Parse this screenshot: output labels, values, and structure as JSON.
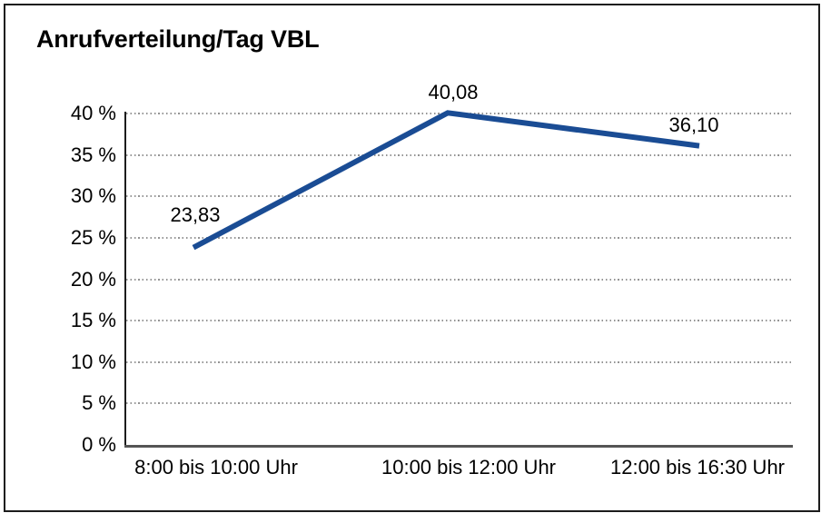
{
  "header": {
    "title": "Anrufverteilung/Tag VBL"
  },
  "chart_data": {
    "type": "line",
    "title": "Anrufverteilung/Tag VBL",
    "categories": [
      "8:00 bis 10:00 Uhr",
      "10:00 bis 12:00 Uhr",
      "12:00 bis 16:30 Uhr"
    ],
    "values": [
      23.83,
      40.08,
      36.1
    ],
    "point_labels": [
      "23,83",
      "40,08",
      "36,10"
    ],
    "xlabel": "",
    "ylabel": "",
    "ylim": [
      0,
      40
    ],
    "ytick_step": 5,
    "y_tick_values": [
      40,
      35,
      30,
      25,
      20,
      15,
      10,
      5,
      0
    ],
    "y_tick_labels": [
      "40 %",
      "35 %",
      "30 %",
      "25 %",
      "20 %",
      "15 %",
      "10 %",
      "5 %",
      "0 %"
    ],
    "grid": "horizontal-dotted",
    "legend_position": "none",
    "colors": {
      "line": "#1A4C94",
      "grid": "#949494",
      "y_axis": "#1C1C1C",
      "x_axis": "#555555",
      "text": "#000000",
      "frame": "#1C1C1C",
      "background": "#FFFFFF"
    }
  }
}
